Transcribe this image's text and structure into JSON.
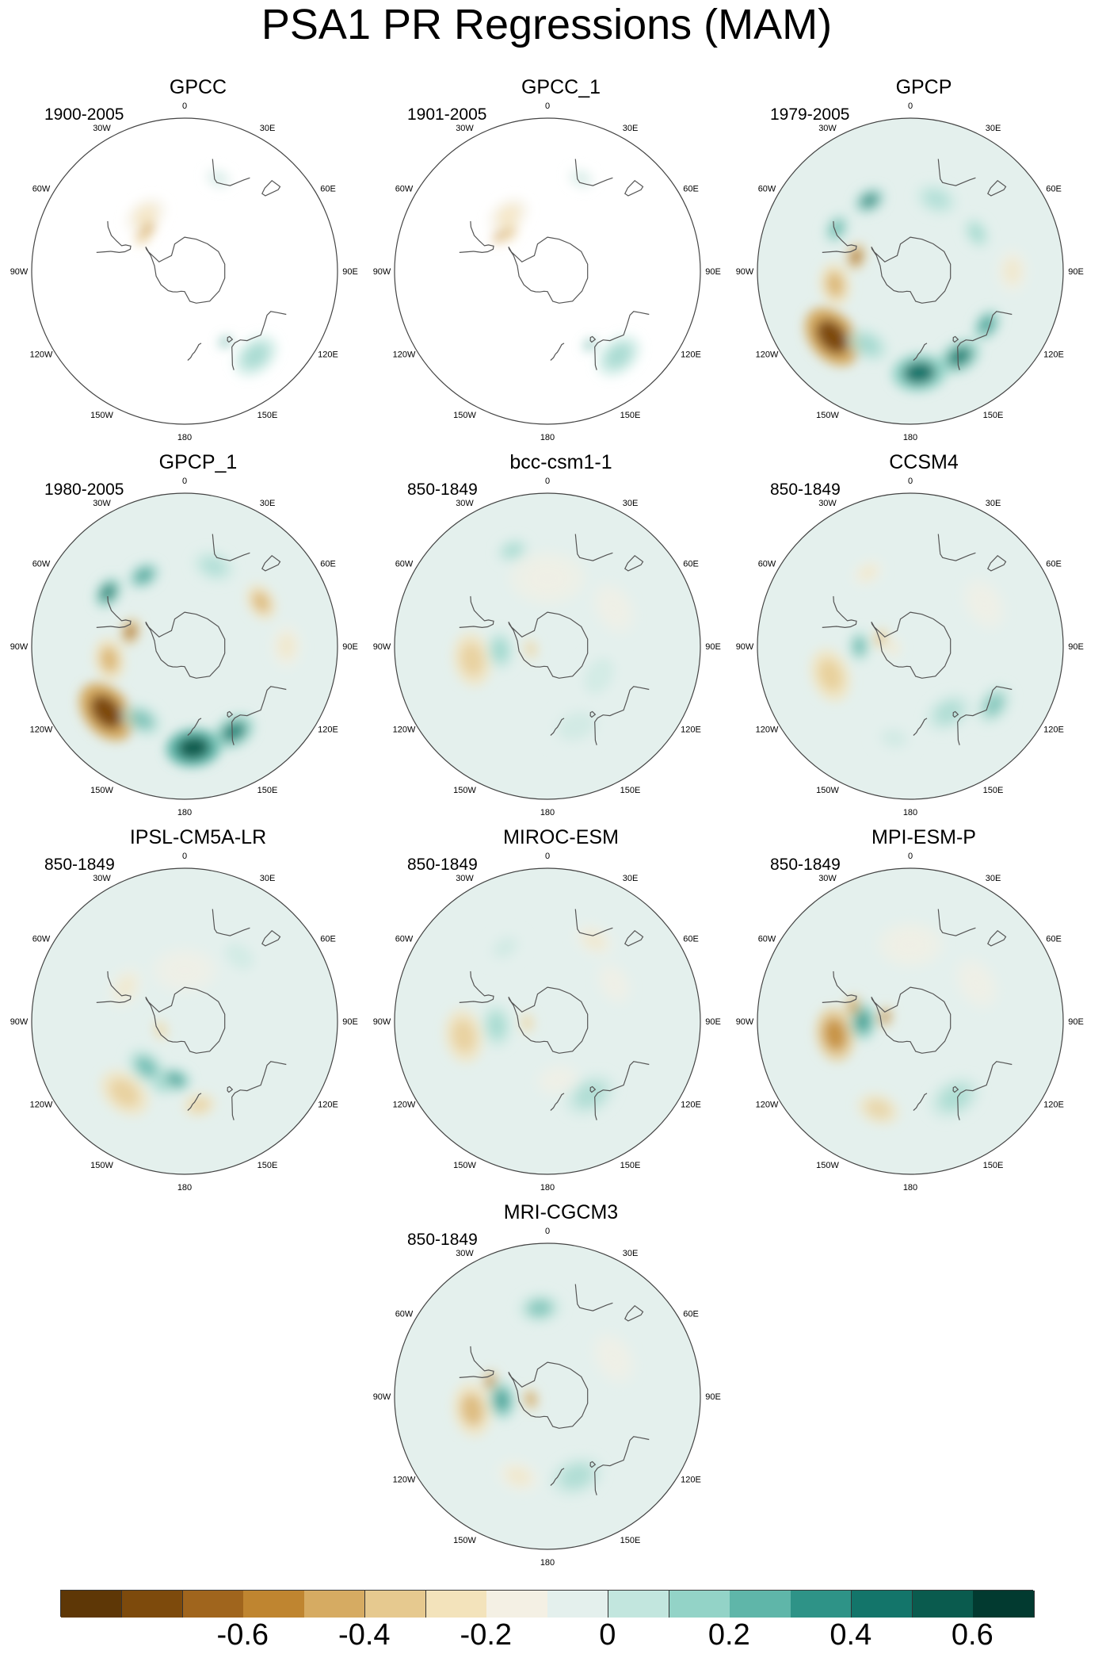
{
  "title": "PSA1 PR Regressions (MAM)",
  "palette": [
    "#5e3706",
    "#7d4a0c",
    "#a0651d",
    "#bf8530",
    "#d6ab62",
    "#e6c98f",
    "#f3e3bb",
    "#f4f0e4",
    "#e4f0ed",
    "#c2e6de",
    "#93d3c7",
    "#5fb6a9",
    "#2e9387",
    "#13756a",
    "#0a5b4e",
    "#023a30"
  ],
  "panels": [
    {
      "name": "GPCC",
      "period": "1900-2005",
      "blobs": [
        [
          -35,
          -50,
          8,
          0.45,
          -0.2
        ],
        [
          -50,
          -58,
          4,
          0.35,
          -0.35
        ],
        [
          -40,
          -57,
          3,
          0.4,
          -0.5
        ],
        [
          140,
          -25,
          9,
          0.4,
          0.25
        ],
        [
          20,
          -32,
          5,
          0.3,
          0.15
        ],
        [
          150,
          -42,
          3,
          0.2,
          0.55
        ]
      ]
    },
    {
      "name": "GPCC_1",
      "period": "1901-2005",
      "blobs": [
        [
          -35,
          -50,
          8,
          0.45,
          -0.2
        ],
        [
          -45,
          -58,
          4,
          0.35,
          -0.4
        ],
        [
          -55,
          -55,
          3,
          0.3,
          -0.45
        ],
        [
          140,
          -25,
          9,
          0.4,
          0.25
        ],
        [
          20,
          -32,
          5,
          0.3,
          0.15
        ],
        [
          150,
          -40,
          3,
          0.2,
          0.5
        ]
      ]
    },
    {
      "name": "GPCP",
      "period": "1979-2005",
      "blobs": [
        [
          -130,
          -30,
          12,
          0.75,
          -0.65
        ],
        [
          -100,
          -45,
          8,
          0.5,
          -0.4
        ],
        [
          -75,
          -57,
          5,
          0.5,
          -0.55
        ],
        [
          -30,
          -42,
          6,
          0.4,
          0.5
        ],
        [
          -60,
          -40,
          6,
          0.55,
          0.35
        ],
        [
          175,
          -30,
          10,
          0.8,
          0.6
        ],
        [
          150,
          -32,
          8,
          0.55,
          0.55
        ],
        [
          125,
          -35,
          6,
          0.45,
          0.4
        ],
        [
          90,
          -30,
          8,
          0.3,
          -0.15
        ],
        [
          60,
          -45,
          6,
          0.35,
          0.2
        ],
        [
          20,
          -45,
          8,
          0.2,
          0.2
        ],
        [
          -150,
          -40,
          8,
          0.4,
          0.3
        ]
      ]
    },
    {
      "name": "GPCP_1",
      "period": "1980-2005",
      "blobs": [
        [
          -130,
          -30,
          12,
          0.75,
          -0.65
        ],
        [
          -100,
          -45,
          8,
          0.5,
          -0.4
        ],
        [
          -75,
          -57,
          5,
          0.5,
          -0.6
        ],
        [
          -55,
          -35,
          6,
          0.55,
          0.6
        ],
        [
          -30,
          -42,
          6,
          0.4,
          0.45
        ],
        [
          175,
          -30,
          10,
          0.8,
          0.65
        ],
        [
          150,
          -32,
          8,
          0.55,
          0.55
        ],
        [
          60,
          -38,
          7,
          0.45,
          -0.35
        ],
        [
          90,
          -30,
          8,
          0.3,
          -0.15
        ],
        [
          -150,
          -40,
          8,
          0.4,
          0.35
        ],
        [
          20,
          -40,
          8,
          0.2,
          0.2
        ]
      ]
    },
    {
      "name": "bcc-csm1-1",
      "period": "850-1849",
      "blobs": [
        [
          -100,
          -45,
          10,
          0.45,
          -0.25
        ],
        [
          -95,
          -62,
          7,
          0.45,
          0.3
        ],
        [
          -100,
          -80,
          4,
          0.3,
          -0.3
        ],
        [
          0,
          -50,
          14,
          0.25,
          -0.1
        ],
        [
          -20,
          -30,
          6,
          0.3,
          0.2
        ],
        [
          160,
          -40,
          12,
          0.25,
          0.15
        ],
        [
          60,
          -45,
          10,
          0.2,
          -0.1
        ],
        [
          120,
          -55,
          12,
          0.2,
          0.1
        ]
      ]
    },
    {
      "name": "CCSM4",
      "period": "850-1849",
      "blobs": [
        [
          -110,
          -40,
          10,
          0.5,
          -0.3
        ],
        [
          -90,
          -60,
          6,
          0.5,
          0.35
        ],
        [
          -75,
          -72,
          4,
          0.4,
          -0.35
        ],
        [
          -95,
          -80,
          4,
          0.3,
          -0.2
        ],
        [
          125,
          -30,
          8,
          0.35,
          0.35
        ],
        [
          150,
          -45,
          9,
          0.25,
          0.2
        ],
        [
          -170,
          -35,
          8,
          0.25,
          0.15
        ],
        [
          -30,
          -40,
          6,
          0.3,
          -0.15
        ],
        [
          60,
          -40,
          10,
          0.2,
          -0.1
        ]
      ]
    },
    {
      "name": "IPSL-CM5A-LR",
      "period": "850-1849",
      "blobs": [
        [
          -140,
          -35,
          10,
          0.45,
          -0.3
        ],
        [
          -140,
          -55,
          8,
          0.5,
          0.35
        ],
        [
          -170,
          -55,
          6,
          0.45,
          0.4
        ],
        [
          170,
          -40,
          6,
          0.35,
          -0.3
        ],
        [
          -160,
          -50,
          5,
          0.3,
          0.3
        ],
        [
          -60,
          -50,
          8,
          0.25,
          -0.15
        ],
        [
          -110,
          -75,
          4,
          0.3,
          -0.3
        ],
        [
          40,
          -40,
          10,
          0.2,
          0.1
        ],
        [
          0,
          -60,
          12,
          0.2,
          -0.1
        ]
      ]
    },
    {
      "name": "MIROC-ESM",
      "period": "850-1849",
      "blobs": [
        [
          -100,
          -40,
          10,
          0.45,
          -0.3
        ],
        [
          -95,
          -60,
          8,
          0.35,
          0.3
        ],
        [
          -95,
          -78,
          4,
          0.3,
          -0.3
        ],
        [
          150,
          -40,
          10,
          0.25,
          0.2
        ],
        [
          170,
          -55,
          8,
          0.2,
          -0.1
        ],
        [
          -30,
          -40,
          8,
          0.25,
          0.15
        ],
        [
          30,
          -35,
          8,
          0.2,
          -0.15
        ],
        [
          60,
          -45,
          8,
          0.2,
          -0.1
        ]
      ]
    },
    {
      "name": "MPI-ESM-P",
      "period": "850-1849",
      "blobs": [
        [
          -100,
          -45,
          10,
          0.55,
          -0.45
        ],
        [
          -90,
          -62,
          7,
          0.5,
          0.4
        ],
        [
          -75,
          -55,
          4,
          0.4,
          -0.45
        ],
        [
          -80,
          -75,
          4,
          0.35,
          -0.55
        ],
        [
          -160,
          -35,
          8,
          0.3,
          -0.25
        ],
        [
          150,
          -38,
          10,
          0.3,
          0.3
        ],
        [
          0,
          -45,
          12,
          0.25,
          -0.1
        ],
        [
          60,
          -45,
          10,
          0.2,
          -0.1
        ]
      ]
    },
    {
      "name": "MRI-CGCM3",
      "period": "850-1849",
      "blobs": [
        [
          -100,
          -45,
          10,
          0.45,
          -0.35
        ],
        [
          -95,
          -63,
          7,
          0.45,
          0.4
        ],
        [
          -75,
          -55,
          4,
          0.35,
          -0.55
        ],
        [
          -100,
          -80,
          4,
          0.35,
          -0.5
        ],
        [
          -5,
          -38,
          8,
          0.35,
          0.35
        ],
        [
          160,
          -40,
          10,
          0.25,
          0.2
        ],
        [
          -160,
          -40,
          8,
          0.3,
          -0.2
        ],
        [
          60,
          -45,
          10,
          0.2,
          -0.1
        ]
      ]
    }
  ],
  "lon_labels": [
    "0",
    "30E",
    "60E",
    "90E",
    "120E",
    "150E",
    "180",
    "150W",
    "120W",
    "90W",
    "60W",
    "30W"
  ],
  "colorbar": {
    "ticks": [
      "-0.6",
      "-0.4",
      "-0.2",
      "0",
      "0.2",
      "0.4",
      "0.6"
    ]
  }
}
